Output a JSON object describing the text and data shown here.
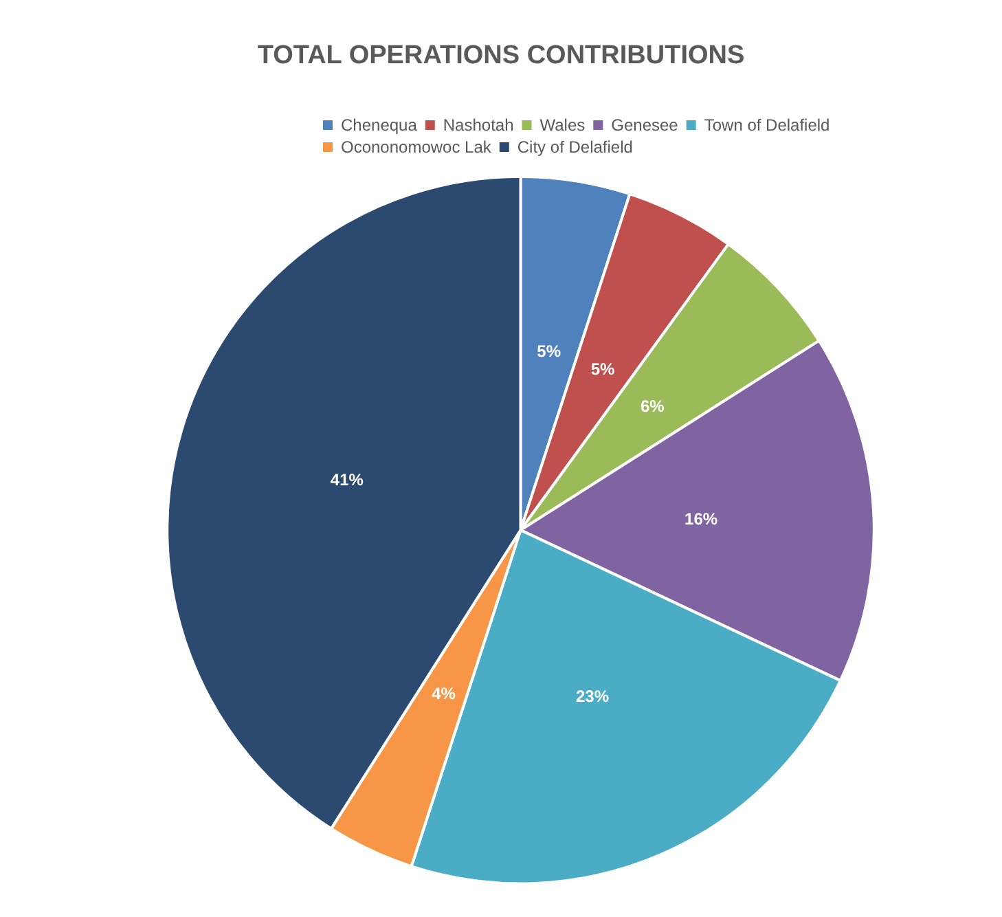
{
  "chart_data": {
    "type": "pie",
    "title": "TOTAL OPERATIONS CONTRIBUTIONS",
    "categories": [
      "Chenequa",
      "Nashotah",
      "Wales",
      "Genesee",
      "Town of Delafield",
      "Ocononomowoc Lak",
      "City of Delafield"
    ],
    "values": [
      5,
      5,
      6,
      16,
      23,
      4,
      41
    ],
    "colors": [
      "#4f81bd",
      "#c0504d",
      "#9bbb59",
      "#8064a2",
      "#4bacc6",
      "#f79646",
      "#2c4a70"
    ],
    "value_labels": [
      "5%",
      "5%",
      "6%",
      "16%",
      "23%",
      "4%",
      "41%"
    ],
    "legend": "top"
  }
}
